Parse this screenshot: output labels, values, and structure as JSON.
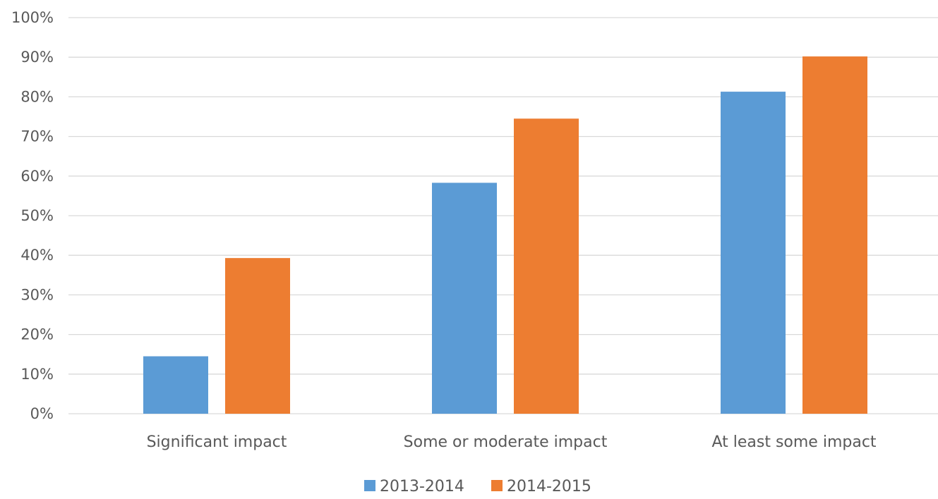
{
  "chart_data": {
    "type": "bar",
    "categories": [
      "Significant impact",
      "Some or moderate impact",
      "At least some impact"
    ],
    "series": [
      {
        "name": "2013-2014",
        "color": "#5b9bd5",
        "values": [
          14.5,
          58.3,
          81.3
        ]
      },
      {
        "name": "2014-2015",
        "color": "#ed7d31",
        "values": [
          39.3,
          74.5,
          90.2
        ]
      }
    ],
    "ylim": [
      0,
      100
    ],
    "yticks": [
      0,
      10,
      20,
      30,
      40,
      50,
      60,
      70,
      80,
      90,
      100
    ],
    "ytick_labels": [
      "0%",
      "10%",
      "20%",
      "30%",
      "40%",
      "50%",
      "60%",
      "70%",
      "80%",
      "90%",
      "100%"
    ],
    "grid": true,
    "legend_position": "bottom",
    "title": "",
    "xlabel": "",
    "ylabel": ""
  }
}
